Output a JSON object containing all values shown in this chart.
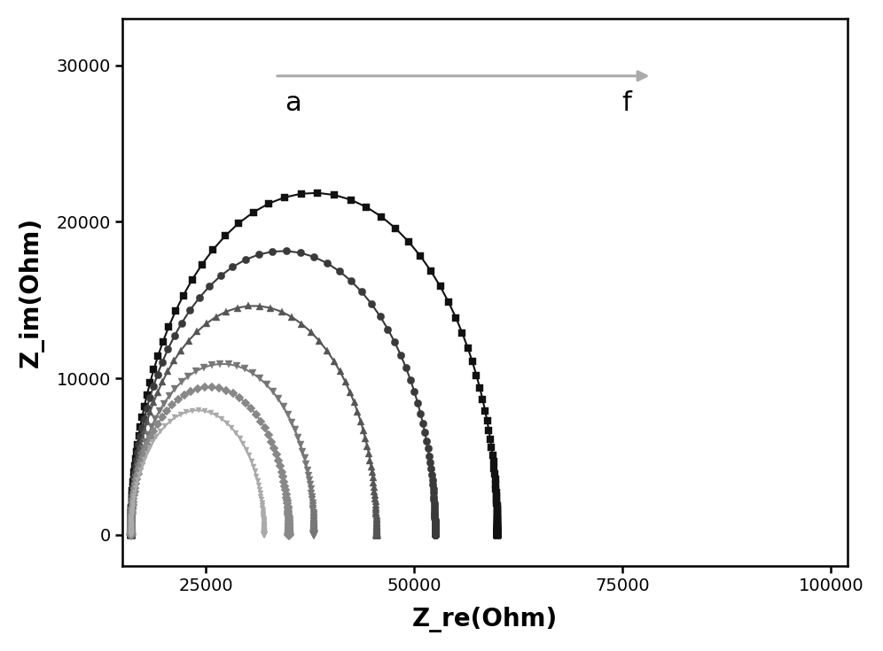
{
  "title": "",
  "xlabel": "Z_re(Ohm)",
  "ylabel": "Z_im(Ohm)",
  "xlim": [
    15000,
    102000
  ],
  "ylim": [
    -2000,
    33000
  ],
  "xticks": [
    25000,
    50000,
    75000,
    100000
  ],
  "yticks": [
    0,
    10000,
    20000,
    30000
  ],
  "background_color": "#ffffff",
  "arrow_color": "#aaaaaa",
  "figsize": [
    9.96,
    7.35
  ],
  "dpi": 100,
  "curve_params": [
    {
      "R0": 16000,
      "R1": 14000,
      "C1": 2.2e-07,
      "R2": 30000,
      "C2": 8e-08,
      "color": "#111111",
      "marker": "s",
      "ms": 6
    },
    {
      "R0": 16000,
      "R1": 11500,
      "C1": 2.2e-07,
      "R2": 25000,
      "C2": 8e-08,
      "color": "#3a3a3a",
      "marker": "o",
      "ms": 6
    },
    {
      "R0": 16000,
      "R1": 9500,
      "C1": 2.2e-07,
      "R2": 20000,
      "C2": 8e-08,
      "color": "#555555",
      "marker": "^",
      "ms": 6
    },
    {
      "R0": 16000,
      "R1": 7000,
      "C1": 2.2e-07,
      "R2": 15000,
      "C2": 8e-08,
      "color": "#777777",
      "marker": "v",
      "ms": 6
    },
    {
      "R0": 16000,
      "R1": 6000,
      "C1": 2.2e-07,
      "R2": 13000,
      "C2": 8e-08,
      "color": "#888888",
      "marker": "D",
      "ms": 5
    },
    {
      "R0": 16000,
      "R1": 5000,
      "C1": 2.2e-07,
      "R2": 11000,
      "C2": 8e-08,
      "color": "#aaaaaa",
      "marker": "v",
      "ms": 5
    }
  ]
}
